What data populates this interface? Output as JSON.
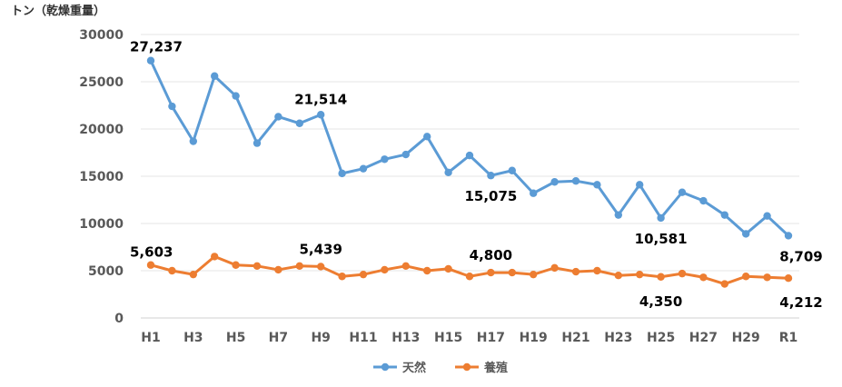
{
  "chart_data": {
    "type": "line",
    "unit_label": "トン（乾燥重量）",
    "categories": [
      "H1",
      "H2",
      "H3",
      "H4",
      "H5",
      "H6",
      "H7",
      "H8",
      "H9",
      "H10",
      "H11",
      "H12",
      "H13",
      "H14",
      "H15",
      "H16",
      "H17",
      "H18",
      "H19",
      "H20",
      "H21",
      "H22",
      "H23",
      "H24",
      "H25",
      "H26",
      "H27",
      "H28",
      "H29",
      "H30",
      "R1"
    ],
    "x_tick_labels": [
      "H1",
      "H3",
      "H5",
      "H7",
      "H9",
      "H11",
      "H13",
      "H15",
      "H17",
      "H19",
      "H21",
      "H23",
      "H25",
      "H27",
      "H29",
      "R1"
    ],
    "y_ticks": [
      "0",
      "5000",
      "10000",
      "15000",
      "20000",
      "25000",
      "30000"
    ],
    "ylim": [
      0,
      30000
    ],
    "grid": true,
    "legend_position": "bottom",
    "series": [
      {
        "name": "天然",
        "color": "#5B9BD5",
        "values": [
          27237,
          22400,
          18700,
          25600,
          23500,
          18500,
          21300,
          20600,
          21514,
          15300,
          15800,
          16800,
          17300,
          19200,
          15400,
          17200,
          15075,
          15600,
          13200,
          14400,
          14500,
          14100,
          10900,
          14100,
          10581,
          13300,
          12400,
          10900,
          8900,
          10800,
          8709
        ]
      },
      {
        "name": "養殖",
        "color": "#ED7D31",
        "values": [
          5603,
          5000,
          4600,
          6500,
          5600,
          5500,
          5100,
          5500,
          5439,
          4400,
          4600,
          5100,
          5500,
          5000,
          5200,
          4400,
          4800,
          4800,
          4600,
          5300,
          4900,
          5000,
          4500,
          4600,
          4350,
          4700,
          4300,
          3600,
          4400,
          4300,
          4212
        ]
      }
    ],
    "data_labels": [
      {
        "series": 0,
        "index": 0,
        "text": "27,237"
      },
      {
        "series": 0,
        "index": 8,
        "text": "21,514"
      },
      {
        "series": 0,
        "index": 16,
        "text": "15,075"
      },
      {
        "series": 0,
        "index": 24,
        "text": "10,581"
      },
      {
        "series": 0,
        "index": 30,
        "text": "8,709"
      },
      {
        "series": 1,
        "index": 0,
        "text": "5,603"
      },
      {
        "series": 1,
        "index": 8,
        "text": "5,439"
      },
      {
        "series": 1,
        "index": 16,
        "text": "4,800"
      },
      {
        "series": 1,
        "index": 24,
        "text": "4,350"
      },
      {
        "series": 1,
        "index": 30,
        "text": "4,212"
      }
    ]
  }
}
